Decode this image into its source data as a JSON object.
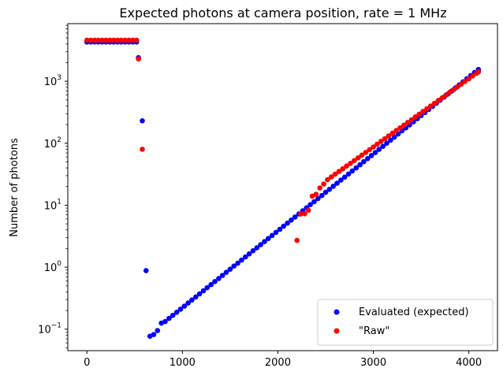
{
  "chart_data": {
    "type": "scatter",
    "title": "Expected photons at camera position, rate = 1 MHz",
    "xlabel": "",
    "ylabel": "Number of photons",
    "xlim": [
      -200,
      4300
    ],
    "ylim": [
      0.045,
      8500
    ],
    "yscale": "log",
    "grid": false,
    "legend_position": "lower-right",
    "x_ticks": [
      0,
      1000,
      2000,
      3000,
      4000
    ],
    "y_ticks": [
      {
        "value": 0.1,
        "base": "10",
        "exp": "−1"
      },
      {
        "value": 1,
        "base": "10",
        "exp": "0"
      },
      {
        "value": 10,
        "base": "10",
        "exp": "1"
      },
      {
        "value": 100,
        "base": "10",
        "exp": "2"
      },
      {
        "value": 1000,
        "base": "10",
        "exp": "3"
      }
    ],
    "series": [
      {
        "name": "Evaluated (expected)",
        "color": "#0000ff",
        "points": [
          [
            0,
            4300
          ],
          [
            40,
            4300
          ],
          [
            80,
            4300
          ],
          [
            120,
            4300
          ],
          [
            160,
            4300
          ],
          [
            200,
            4300
          ],
          [
            240,
            4300
          ],
          [
            280,
            4300
          ],
          [
            320,
            4300
          ],
          [
            360,
            4300
          ],
          [
            400,
            4300
          ],
          [
            440,
            4300
          ],
          [
            480,
            4300
          ],
          [
            520,
            4300
          ],
          [
            540,
            2400
          ],
          [
            580,
            230
          ],
          [
            620,
            0.88
          ],
          [
            660,
            0.077
          ],
          [
            700,
            0.082
          ],
          [
            740,
            0.095
          ],
          [
            780,
            0.125
          ],
          [
            820,
            0.133
          ],
          [
            860,
            0.149
          ],
          [
            900,
            0.167
          ],
          [
            940,
            0.187
          ],
          [
            980,
            0.21
          ],
          [
            1020,
            0.235
          ],
          [
            1060,
            0.264
          ],
          [
            1100,
            0.296
          ],
          [
            1140,
            0.331
          ],
          [
            1180,
            0.371
          ],
          [
            1220,
            0.416
          ],
          [
            1260,
            0.467
          ],
          [
            1300,
            0.523
          ],
          [
            1340,
            0.586
          ],
          [
            1380,
            0.657
          ],
          [
            1420,
            0.737
          ],
          [
            1460,
            0.826
          ],
          [
            1500,
            0.926
          ],
          [
            1540,
            1.04
          ],
          [
            1580,
            1.16
          ],
          [
            1620,
            1.3
          ],
          [
            1660,
            1.46
          ],
          [
            1700,
            1.64
          ],
          [
            1740,
            1.84
          ],
          [
            1780,
            2.06
          ],
          [
            1820,
            2.31
          ],
          [
            1860,
            2.59
          ],
          [
            1900,
            2.9
          ],
          [
            1940,
            3.25
          ],
          [
            1980,
            3.64
          ],
          [
            2020,
            4.08
          ],
          [
            2060,
            4.58
          ],
          [
            2100,
            5.13
          ],
          [
            2140,
            5.75
          ],
          [
            2180,
            6.45
          ],
          [
            2220,
            7.23
          ],
          [
            2260,
            8.1
          ],
          [
            2300,
            9.08
          ],
          [
            2340,
            10.2
          ],
          [
            2380,
            11.4
          ],
          [
            2420,
            12.8
          ],
          [
            2460,
            14.3
          ],
          [
            2500,
            16.1
          ],
          [
            2540,
            18.0
          ],
          [
            2580,
            20.2
          ],
          [
            2620,
            22.6
          ],
          [
            2660,
            25.4
          ],
          [
            2700,
            28.4
          ],
          [
            2740,
            31.9
          ],
          [
            2780,
            35.7
          ],
          [
            2820,
            40.0
          ],
          [
            2860,
            44.9
          ],
          [
            2900,
            50.3
          ],
          [
            2940,
            56.4
          ],
          [
            2980,
            63.2
          ],
          [
            3020,
            70.8
          ],
          [
            3060,
            79.4
          ],
          [
            3100,
            89.0
          ],
          [
            3140,
            99.8
          ],
          [
            3180,
            112
          ],
          [
            3220,
            125
          ],
          [
            3260,
            141
          ],
          [
            3300,
            158
          ],
          [
            3340,
            177
          ],
          [
            3380,
            198
          ],
          [
            3420,
            222
          ],
          [
            3460,
            249
          ],
          [
            3500,
            279
          ],
          [
            3540,
            313
          ],
          [
            3580,
            351
          ],
          [
            3620,
            393
          ],
          [
            3660,
            441
          ],
          [
            3700,
            494
          ],
          [
            3740,
            554
          ],
          [
            3780,
            621
          ],
          [
            3820,
            696
          ],
          [
            3860,
            780
          ],
          [
            3900,
            875
          ],
          [
            3940,
            981
          ],
          [
            3980,
            1100
          ],
          [
            4020,
            1233
          ],
          [
            4060,
            1382
          ],
          [
            4100,
            1549
          ]
        ]
      },
      {
        "name": "\"Raw\"",
        "color": "#ff0000",
        "points": [
          [
            0,
            4600
          ],
          [
            40,
            4600
          ],
          [
            80,
            4600
          ],
          [
            120,
            4600
          ],
          [
            160,
            4600
          ],
          [
            200,
            4600
          ],
          [
            240,
            4600
          ],
          [
            280,
            4600
          ],
          [
            320,
            4600
          ],
          [
            360,
            4600
          ],
          [
            400,
            4600
          ],
          [
            440,
            4600
          ],
          [
            480,
            4600
          ],
          [
            520,
            4600
          ],
          [
            540,
            2300
          ],
          [
            580,
            80
          ],
          [
            2200,
            2.7
          ],
          [
            2240,
            7.2
          ],
          [
            2280,
            7.3
          ],
          [
            2320,
            8.3
          ],
          [
            2360,
            14
          ],
          [
            2400,
            15
          ],
          [
            2440,
            19
          ],
          [
            2480,
            22
          ],
          [
            2520,
            25.8
          ],
          [
            2560,
            28.6
          ],
          [
            2600,
            31.6
          ],
          [
            2640,
            35.0
          ],
          [
            2680,
            38.7
          ],
          [
            2720,
            42.9
          ],
          [
            2760,
            47.4
          ],
          [
            2800,
            52.5
          ],
          [
            2840,
            58.1
          ],
          [
            2880,
            64.3
          ],
          [
            2920,
            71.1
          ],
          [
            2960,
            78.7
          ],
          [
            3000,
            87.1
          ],
          [
            3040,
            96.4
          ],
          [
            3080,
            107
          ],
          [
            3120,
            118
          ],
          [
            3160,
            131
          ],
          [
            3200,
            145
          ],
          [
            3240,
            160
          ],
          [
            3280,
            177
          ],
          [
            3320,
            196
          ],
          [
            3360,
            217
          ],
          [
            3400,
            240
          ],
          [
            3440,
            266
          ],
          [
            3480,
            294
          ],
          [
            3520,
            326
          ],
          [
            3560,
            360
          ],
          [
            3600,
            399
          ],
          [
            3640,
            441
          ],
          [
            3680,
            488
          ],
          [
            3720,
            540
          ],
          [
            3760,
            598
          ],
          [
            3800,
            662
          ],
          [
            3840,
            732
          ],
          [
            3880,
            810
          ],
          [
            3920,
            897
          ],
          [
            3960,
            993
          ],
          [
            4000,
            1099
          ],
          [
            4040,
            1216
          ],
          [
            4080,
            1346
          ],
          [
            4100,
            1416
          ]
        ]
      }
    ]
  }
}
